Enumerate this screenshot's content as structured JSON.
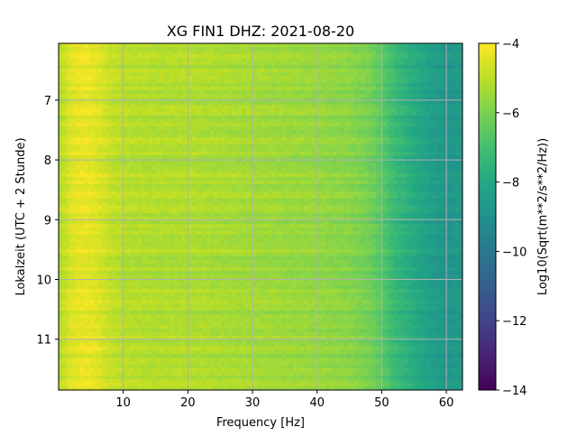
{
  "chart_data": {
    "type": "heatmap",
    "title": "XG FIN1  DHZ: 2021-08-20",
    "xlabel": "Frequency [Hz]",
    "ylabel": "Lokalzeit (UTC + 2 Stunde)",
    "xlim": [
      0,
      62.5
    ],
    "ylim": [
      11.85,
      6.05
    ],
    "y_inverted": true,
    "xticks": [
      10,
      20,
      30,
      40,
      50,
      60
    ],
    "yticks": [
      7,
      8,
      9,
      10,
      11
    ],
    "grid": true,
    "colormap": "viridis",
    "colorbar": {
      "label": "Log10(Sqrt(m**2/s**2/Hz))",
      "range": [
        -14,
        -4
      ],
      "ticks": [
        -4,
        -6,
        -8,
        -10,
        -12,
        -14
      ]
    },
    "frequency_profile_hz": [
      0,
      2,
      4,
      6,
      8,
      10,
      15,
      20,
      25,
      30,
      35,
      40,
      45,
      48,
      50,
      52,
      55,
      57,
      60,
      62.5
    ],
    "typical_level": [
      -5.2,
      -4.5,
      -4.3,
      -4.5,
      -4.9,
      -5.1,
      -5.2,
      -5.2,
      -5.3,
      -5.4,
      -5.5,
      -5.6,
      -5.8,
      -6.1,
      -6.6,
      -7.3,
      -7.9,
      -8.3,
      -8.8,
      -8.6
    ]
  }
}
